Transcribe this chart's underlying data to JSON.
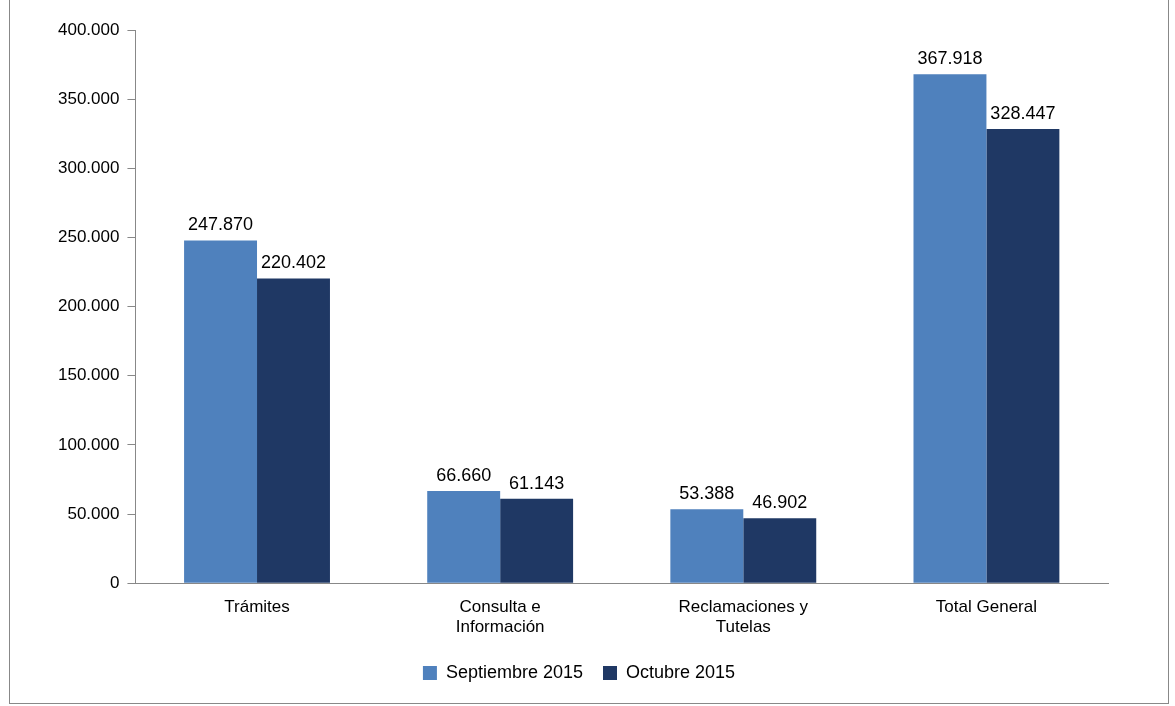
{
  "chart_data": {
    "type": "bar",
    "categories": [
      "Trámites",
      "Consulta e Información",
      "Reclamaciones y Tutelas",
      "Total General"
    ],
    "series": [
      {
        "name": "Septiembre 2015",
        "color": "#4f81bd",
        "values": [
          247870,
          66660,
          53388,
          367918
        ],
        "value_labels": [
          "247.870",
          "66.660",
          "53.388",
          "367.918"
        ]
      },
      {
        "name": "Octubre 2015",
        "color": "#1f3864",
        "values": [
          220402,
          61143,
          46902,
          328447
        ],
        "value_labels": [
          "220.402",
          "61.143",
          "46.902",
          "328.447"
        ]
      }
    ],
    "ylim": [
      0,
      400000
    ],
    "yticks": [
      {
        "value": 0,
        "label": "0"
      },
      {
        "value": 50000,
        "label": "50.000"
      },
      {
        "value": 100000,
        "label": "100.000"
      },
      {
        "value": 150000,
        "label": "150.000"
      },
      {
        "value": 200000,
        "label": "200.000"
      },
      {
        "value": 250000,
        "label": "250.000"
      },
      {
        "value": 300000,
        "label": "300.000"
      },
      {
        "value": 350000,
        "label": "350.000"
      },
      {
        "value": 400000,
        "label": "400.000"
      }
    ],
    "grid": false,
    "legend": "bottom"
  }
}
